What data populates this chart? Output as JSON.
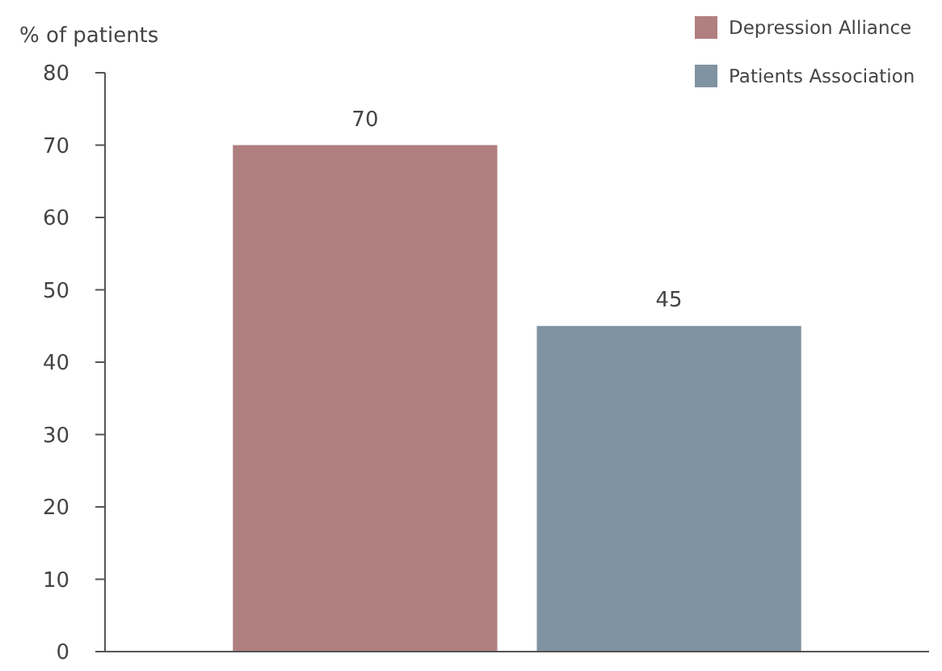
{
  "chart_data": {
    "type": "bar",
    "ylabel": "% of patients",
    "categories": [
      null
    ],
    "series": [
      {
        "name": "Depression Alliance",
        "color": "#b07f80",
        "values": [
          70
        ]
      },
      {
        "name": "Patients Association",
        "color": "#7f93a3",
        "values": [
          45
        ]
      }
    ],
    "ylim": [
      0,
      80
    ],
    "yticks": [
      0,
      10,
      20,
      30,
      40,
      50,
      60,
      70,
      80
    ],
    "data_labels": true,
    "legend": "top right",
    "grid": false
  }
}
